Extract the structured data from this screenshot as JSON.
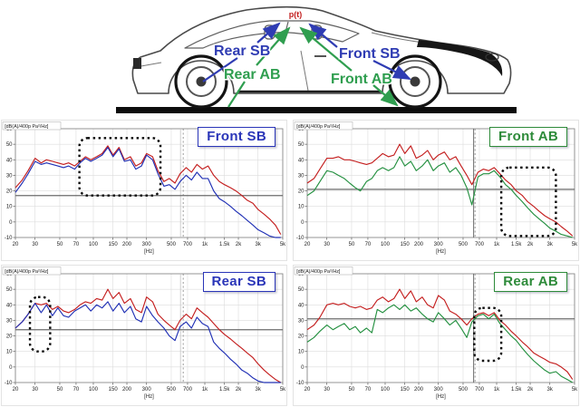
{
  "colors": {
    "series_red": "#c41f1f",
    "series_blue": "#2030b5",
    "series_green": "#249040",
    "car_label_blue": "#2f3cb3",
    "car_label_green": "#2f9e4f",
    "pressure_red": "#c22020"
  },
  "car_figure": {
    "pressure_point_label": "p(t)",
    "labels": [
      {
        "id": "rear-sb",
        "text": "Rear SB"
      },
      {
        "id": "front-sb",
        "text": "Front SB"
      },
      {
        "id": "rear-ab",
        "text": "Rear AB"
      },
      {
        "id": "front-ab",
        "text": "Front AB"
      }
    ]
  },
  "frequencies_hz": [
    20,
    23,
    26,
    30,
    34,
    38,
    43,
    48,
    54,
    60,
    68,
    76,
    85,
    95,
    107,
    120,
    135,
    150,
    170,
    190,
    215,
    240,
    270,
    300,
    340,
    380,
    430,
    480,
    540,
    600,
    680,
    760,
    850,
    950,
    1070,
    1200,
    1350,
    1500,
    1700,
    1900,
    2150,
    2400,
    2700,
    3000,
    3400,
    3800,
    4300,
    4800
  ],
  "chart_data": [
    {
      "id": "front-sb",
      "type": "line",
      "title": "Front SB",
      "title_color": "#2a35b8",
      "ylabel": "[dB(A)/400p Pa²/Hz]",
      "xlabel": "[Hz]",
      "xscale": "log",
      "xlim": [
        20,
        5000
      ],
      "ylim": [
        -10,
        60
      ],
      "grid": true,
      "legend": "none",
      "x_ticks": [
        20,
        30,
        50,
        70,
        100,
        150,
        200,
        300,
        500,
        700,
        1000,
        1500,
        2000,
        3000,
        5000
      ],
      "x_tick_labels": [
        "20",
        "30",
        "50",
        "70",
        "100",
        "150",
        "200",
        "300",
        "500",
        "700",
        "1k",
        "1.5k",
        "2k",
        "3k",
        "5k"
      ],
      "y_ticks": [
        60,
        50,
        40,
        30,
        20,
        10,
        0,
        -10
      ],
      "ref_line_db": 17,
      "cursor_hz": 640,
      "cursor_solid": false,
      "highlight_box": {
        "f1": 75,
        "f2": 400,
        "db1": 17,
        "db2": 54
      },
      "series": [
        {
          "name": "red",
          "color": "#c41f1f",
          "y": [
            22,
            27,
            33,
            41,
            38,
            40,
            39,
            38,
            37,
            38,
            36,
            39,
            42,
            40,
            42,
            44,
            49,
            43,
            48,
            40,
            42,
            36,
            38,
            44,
            42,
            33,
            26,
            28,
            25,
            31,
            35,
            32,
            37,
            34,
            36,
            30,
            26,
            24,
            22,
            20,
            17,
            14,
            12,
            8,
            5,
            2,
            -2,
            -8
          ]
        },
        {
          "name": "blue",
          "color": "#2030b5",
          "y": [
            19,
            25,
            31,
            39,
            37,
            38,
            37,
            36,
            35,
            36,
            34,
            38,
            41,
            39,
            41,
            43,
            48,
            42,
            47,
            39,
            40,
            34,
            36,
            43,
            40,
            31,
            23,
            24,
            21,
            26,
            30,
            27,
            32,
            28,
            28,
            20,
            15,
            13,
            10,
            7,
            4,
            1,
            -2,
            -5,
            -7,
            -9,
            -10,
            -10
          ]
        }
      ]
    },
    {
      "id": "front-ab",
      "type": "line",
      "title": "Front AB",
      "title_color": "#2e8b3a",
      "ylabel": "[dB(A)/400p Pa²/Hz]",
      "xlabel": "[Hz]",
      "xscale": "log",
      "xlim": [
        20,
        5000
      ],
      "ylim": [
        -10,
        60
      ],
      "grid": true,
      "legend": "none",
      "x_ticks": [
        20,
        30,
        50,
        70,
        100,
        150,
        200,
        300,
        500,
        700,
        1000,
        1500,
        2000,
        3000,
        5000
      ],
      "x_tick_labels": [
        "20",
        "30",
        "50",
        "70",
        "100",
        "150",
        "200",
        "300",
        "500",
        "700",
        "1k",
        "1.5k",
        "2k",
        "3k",
        "5k"
      ],
      "y_ticks": [
        60,
        50,
        40,
        30,
        20,
        10,
        0,
        -10
      ],
      "ref_line_db": 21,
      "cursor_hz": 640,
      "cursor_solid": true,
      "highlight_box": {
        "f1": 1100,
        "f2": 3400,
        "db1": -9,
        "db2": 35
      },
      "series": [
        {
          "name": "red",
          "color": "#c41f1f",
          "y": [
            25,
            28,
            34,
            41,
            41,
            42,
            40,
            40,
            39,
            38,
            37,
            38,
            41,
            44,
            42,
            43,
            50,
            44,
            49,
            41,
            43,
            46,
            40,
            43,
            45,
            40,
            42,
            36,
            30,
            24,
            32,
            34,
            33,
            35,
            31,
            27,
            24,
            20,
            17,
            13,
            10,
            7,
            4,
            2,
            0,
            -3,
            -6,
            -9
          ]
        },
        {
          "name": "green",
          "color": "#249040",
          "y": [
            17,
            20,
            26,
            33,
            32,
            30,
            28,
            25,
            22,
            20,
            26,
            28,
            33,
            35,
            33,
            35,
            42,
            36,
            39,
            33,
            36,
            40,
            33,
            36,
            38,
            32,
            35,
            30,
            22,
            11,
            29,
            31,
            31,
            33,
            29,
            24,
            21,
            17,
            13,
            9,
            5,
            2,
            -1,
            -4,
            -6,
            -8,
            -9,
            -10
          ]
        }
      ]
    },
    {
      "id": "rear-sb",
      "type": "line",
      "title": "Rear SB",
      "title_color": "#2a35b8",
      "ylabel": "[dB(A)/400p Pa²/Hz]",
      "xlabel": "[Hz]",
      "xscale": "log",
      "xlim": [
        20,
        5000
      ],
      "ylim": [
        -10,
        60
      ],
      "grid": true,
      "legend": "none",
      "x_ticks": [
        20,
        30,
        50,
        70,
        100,
        150,
        200,
        300,
        500,
        700,
        1000,
        1500,
        2000,
        3000,
        5000
      ],
      "x_tick_labels": [
        "20",
        "30",
        "50",
        "70",
        "100",
        "150",
        "200",
        "300",
        "500",
        "700",
        "1k",
        "1.5k",
        "2k",
        "3k",
        "5k"
      ],
      "y_ticks": [
        60,
        50,
        40,
        30,
        20,
        10,
        0,
        -10
      ],
      "ref_line_db": 24,
      "cursor_hz": 640,
      "cursor_solid": false,
      "highlight_box": {
        "f1": 27,
        "f2": 41,
        "db1": 10,
        "db2": 45
      },
      "series": [
        {
          "name": "red",
          "color": "#c41f1f",
          "y": [
            25,
            29,
            34,
            41,
            40,
            41,
            37,
            39,
            36,
            35,
            37,
            40,
            42,
            41,
            44,
            43,
            50,
            44,
            48,
            41,
            44,
            37,
            35,
            45,
            42,
            34,
            30,
            27,
            24,
            30,
            34,
            31,
            38,
            35,
            32,
            28,
            24,
            21,
            18,
            15,
            12,
            9,
            6,
            2,
            -2,
            -5,
            -8,
            -10
          ]
        },
        {
          "name": "blue",
          "color": "#2030b5",
          "y": [
            25,
            29,
            34,
            41,
            35,
            40,
            33,
            38,
            33,
            32,
            36,
            38,
            40,
            36,
            40,
            38,
            42,
            36,
            41,
            35,
            39,
            31,
            29,
            39,
            33,
            29,
            25,
            20,
            17,
            26,
            29,
            25,
            32,
            28,
            26,
            16,
            12,
            9,
            5,
            2,
            -2,
            -4,
            -7,
            -9,
            -10,
            -10,
            -10,
            -10
          ]
        }
      ]
    },
    {
      "id": "rear-ab",
      "type": "line",
      "title": "Rear AB",
      "title_color": "#2e8b3a",
      "ylabel": "[dB(A)/400p Pa²/Hz]",
      "xlabel": "[Hz]",
      "xscale": "log",
      "xlim": [
        20,
        5000
      ],
      "ylim": [
        -10,
        60
      ],
      "grid": true,
      "legend": "none",
      "x_ticks": [
        20,
        30,
        50,
        70,
        100,
        150,
        200,
        300,
        500,
        700,
        1000,
        1500,
        2000,
        3000,
        5000
      ],
      "x_tick_labels": [
        "20",
        "30",
        "50",
        "70",
        "100",
        "150",
        "200",
        "300",
        "500",
        "700",
        "1k",
        "1.5k",
        "2k",
        "3k",
        "5k"
      ],
      "y_ticks": [
        60,
        50,
        40,
        30,
        20,
        10,
        0,
        -10
      ],
      "ref_line_db": 31,
      "cursor_hz": 640,
      "cursor_solid": true,
      "highlight_box": {
        "f1": 630,
        "f2": 1100,
        "db1": 4,
        "db2": 38
      },
      "series": [
        {
          "name": "red",
          "color": "#c41f1f",
          "y": [
            24,
            27,
            32,
            40,
            41,
            40,
            41,
            39,
            38,
            39,
            37,
            38,
            43,
            45,
            42,
            44,
            50,
            44,
            49,
            42,
            45,
            40,
            38,
            46,
            43,
            36,
            34,
            31,
            27,
            31,
            34,
            35,
            33,
            35,
            30,
            27,
            23,
            20,
            16,
            13,
            9,
            7,
            5,
            3,
            2,
            0,
            -3,
            -8
          ]
        },
        {
          "name": "green",
          "color": "#249040",
          "y": [
            16,
            19,
            23,
            27,
            24,
            26,
            28,
            24,
            26,
            22,
            25,
            22,
            37,
            35,
            38,
            40,
            37,
            40,
            36,
            38,
            34,
            31,
            29,
            35,
            31,
            27,
            30,
            25,
            19,
            29,
            33,
            34,
            31,
            34,
            28,
            24,
            20,
            17,
            12,
            8,
            4,
            1,
            -2,
            -4,
            -3,
            -6,
            -8,
            -10
          ]
        }
      ]
    }
  ]
}
